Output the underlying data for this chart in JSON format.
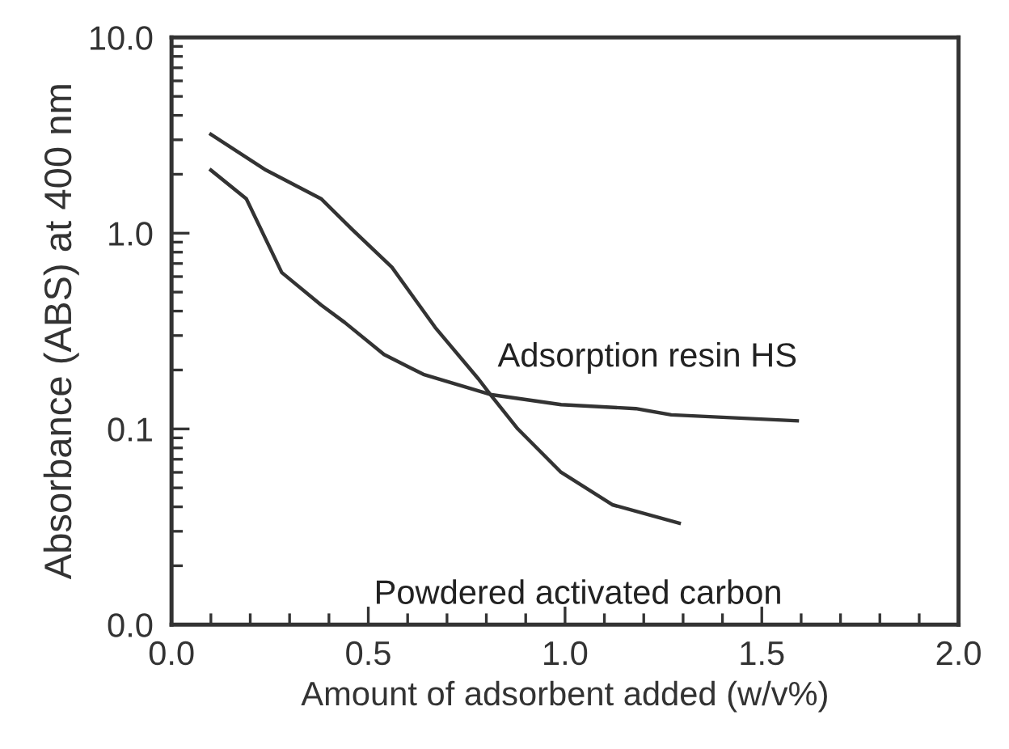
{
  "chart_data": {
    "type": "line",
    "xlabel": "Amount of adsorbent added (w/v%)",
    "ylabel": "Absorbance (ABS) at 400 nm",
    "log": "y",
    "xlim": [
      0,
      2
    ],
    "xticks": [
      {
        "value": 0,
        "label": "0.0"
      },
      {
        "value": 0.5,
        "label": "0.5"
      },
      {
        "value": 1,
        "label": "1.0"
      },
      {
        "value": 1.5,
        "label": "1.5"
      },
      {
        "value": 2,
        "label": "2.0"
      }
    ],
    "ylim": [
      0.01,
      10
    ],
    "yticks": [
      {
        "value": 0.01,
        "label": "0.0"
      },
      {
        "value": 0.1,
        "label": "0.1"
      },
      {
        "value": 1,
        "label": "1.0"
      },
      {
        "value": 10,
        "label": "10.0"
      }
    ],
    "grid": false,
    "legend": false,
    "marker": "none",
    "line_style": "solid",
    "series": [
      {
        "name": "Adsorption resin HS",
        "color": "#333333",
        "x": [
          0.1,
          0.19,
          0.28,
          0.38,
          0.44,
          0.54,
          0.64,
          0.81,
          0.99,
          1.18,
          1.27,
          1.59
        ],
        "values": [
          2.1,
          1.5,
          0.63,
          0.43,
          0.35,
          0.24,
          0.19,
          0.15,
          0.133,
          0.127,
          0.118,
          0.11
        ]
      },
      {
        "name": "Powdered activated carbon",
        "color": "#333333",
        "x": [
          0.1,
          0.24,
          0.38,
          0.46,
          0.56,
          0.67,
          0.78,
          0.81,
          0.88,
          0.99,
          1.12,
          1.29
        ],
        "values": [
          3.2,
          2.1,
          1.5,
          1.04,
          0.67,
          0.33,
          0.18,
          0.15,
          0.1,
          0.06,
          0.041,
          0.033
        ]
      }
    ]
  }
}
